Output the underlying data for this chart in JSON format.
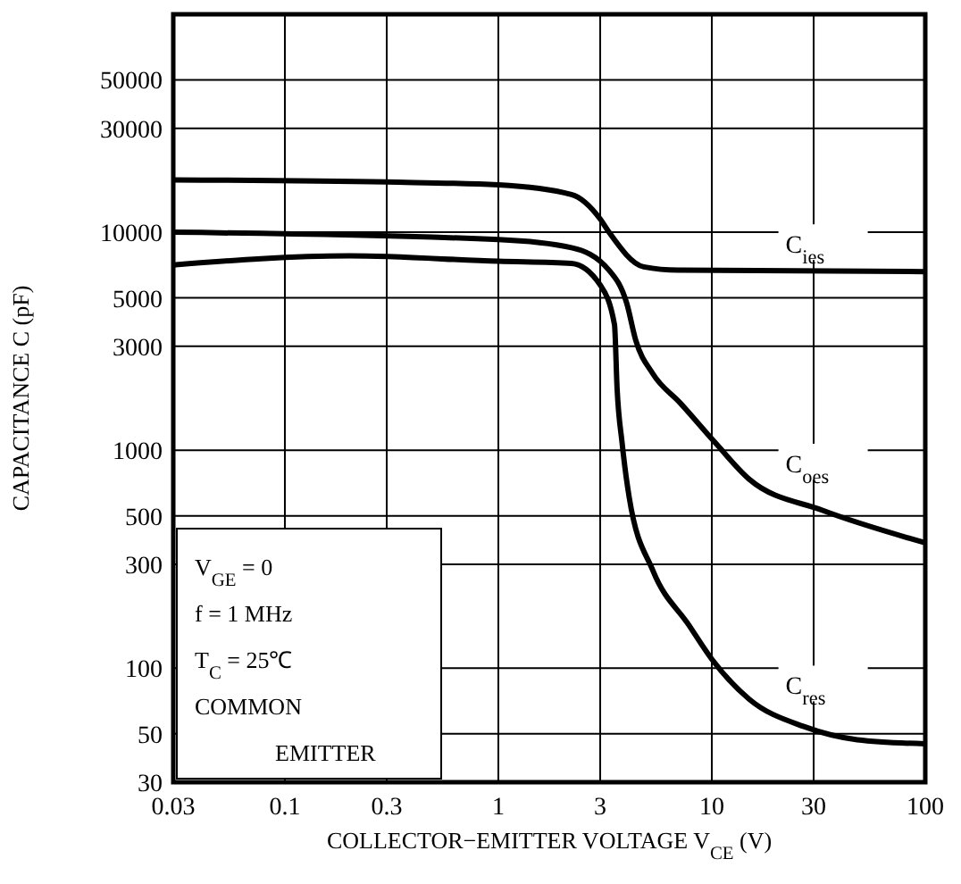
{
  "chart_data": {
    "type": "line",
    "xlabel": "COLLECTOR−EMITTER VOLTAGE V$_{CE}$(V)",
    "ylabel": "CAPACITANCE C (pF)",
    "log": "xy",
    "grid": true,
    "line_style": "solid",
    "xlim": [
      0.03,
      100
    ],
    "ylim": [
      30,
      100000
    ],
    "xticks": [
      0.03,
      0.1,
      0.3,
      1,
      3,
      10,
      30,
      100
    ],
    "yticks": [
      30,
      50,
      100,
      300,
      500,
      1000,
      3000,
      5000,
      10000,
      30000,
      50000
    ],
    "annotations": [
      "V$_{GE}$ = 0",
      "f = 1 MHz",
      "T$_{C}$ = 25℃",
      "COMMON",
      "EMITTER"
    ],
    "series": [
      {
        "name": "C$_{ies}$",
        "color": "#000000",
        "x": [
          0.03,
          0.3,
          1,
          2.2,
          3,
          3.3,
          4.8,
          7,
          100
        ],
        "values": [
          17400,
          17000,
          16500,
          14900,
          11500,
          10000,
          6940,
          6700,
          6600
        ]
      },
      {
        "name": "C$_{oes}$",
        "color": "#000000",
        "x": [
          0.03,
          1,
          2.2,
          3.3,
          4,
          4.4,
          5.3,
          7.1,
          10.4,
          15,
          33,
          100
        ],
        "values": [
          10000,
          9260,
          8500,
          6700,
          4700,
          3200,
          2240,
          1650,
          1080,
          735,
          530,
          376
        ]
      },
      {
        "name": "C$_{res}$",
        "color": "#000000",
        "x": [
          0.03,
          0.2,
          1,
          2.2,
          3,
          3.5,
          3.6,
          3.8,
          4.1,
          5.3,
          7.8,
          10,
          15,
          27,
          48,
          100
        ],
        "values": [
          7080,
          7800,
          7360,
          7200,
          5730,
          3770,
          1920,
          1080,
          610,
          280,
          158,
          110,
          72,
          54,
          47,
          45
        ]
      }
    ]
  }
}
